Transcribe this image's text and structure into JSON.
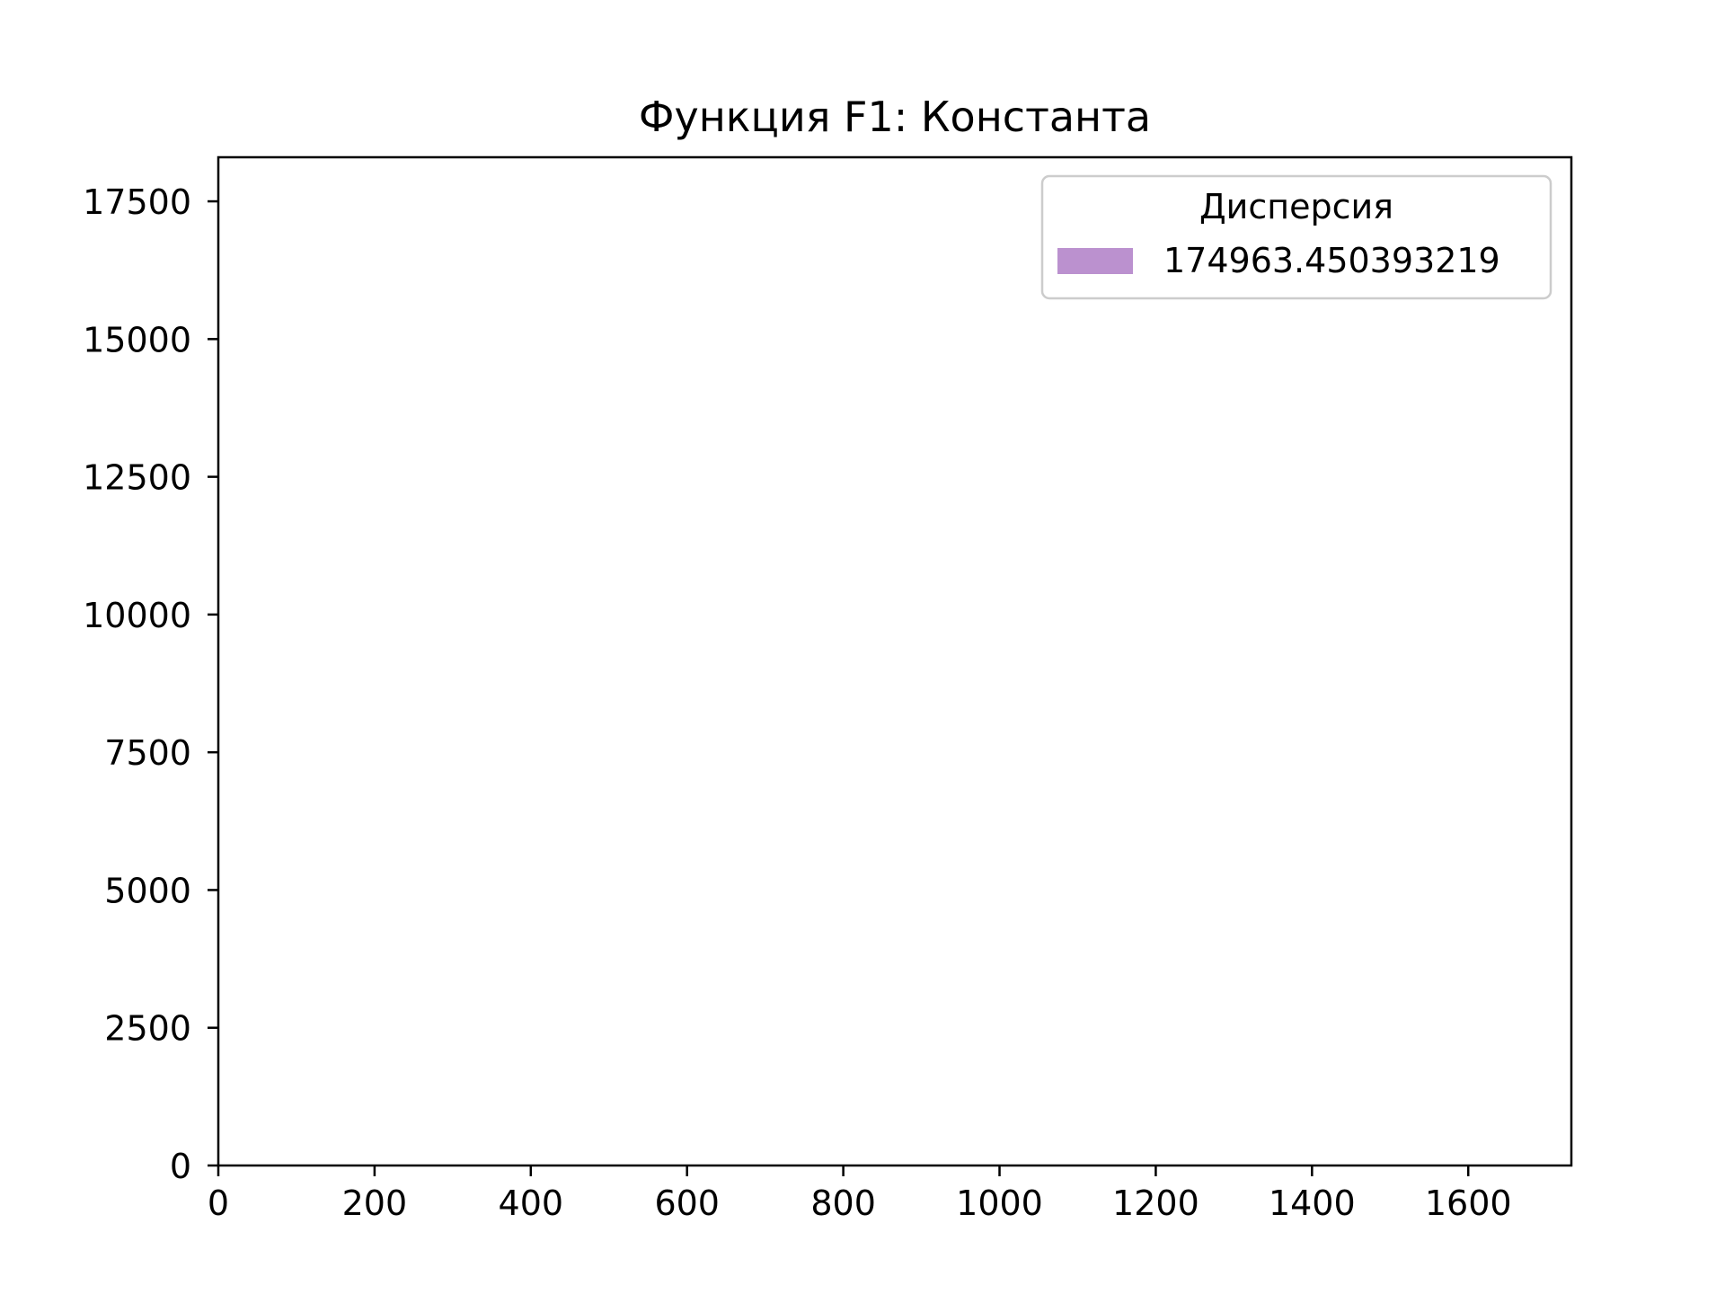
{
  "chart_data": {
    "type": "bar",
    "title": "Функция F1: Константа",
    "xlabel": "",
    "ylabel": "",
    "xlim": [
      0,
      1732
    ],
    "ylim": [
      0,
      18300
    ],
    "xticks": [
      0,
      200,
      400,
      600,
      800,
      1000,
      1200,
      1400,
      1600
    ],
    "yticks": [
      0,
      2500,
      5000,
      7500,
      10000,
      12500,
      15000,
      17500
    ],
    "grid": false,
    "legend": {
      "title": "Дисперсия",
      "placement": "top-right",
      "entries": [
        {
          "label": "174963.450393219",
          "color": "#bb91cf"
        }
      ]
    },
    "series": [
      {
        "name": "174963.450393219",
        "color": "#bb91cf",
        "values": []
      }
    ]
  }
}
